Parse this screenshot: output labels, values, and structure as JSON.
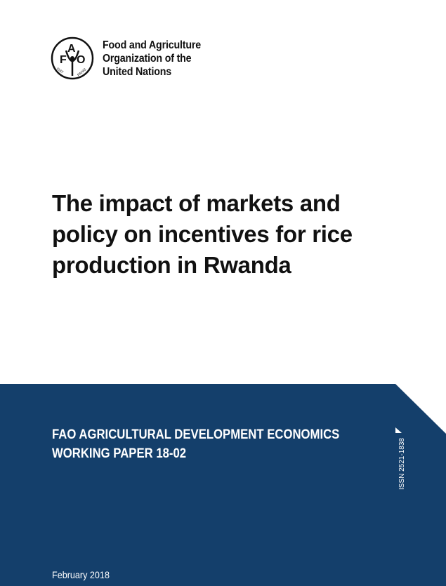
{
  "header": {
    "logo_text": "FAO FIAT PANIS",
    "organization_lines": [
      "Food and Agriculture",
      "Organization of the",
      "United Nations"
    ]
  },
  "title_lines": [
    "The impact of markets and",
    "policy on incentives for rice",
    "production in Rwanda"
  ],
  "series_lines": [
    "FAO AGRICULTURAL DEVELOPMENT ECONOMICS",
    "WORKING PAPER 18-02"
  ],
  "issn": "ISSN 2521-1838",
  "date": "February 2018",
  "colors": {
    "band": "#143f6b",
    "text": "#111111"
  }
}
